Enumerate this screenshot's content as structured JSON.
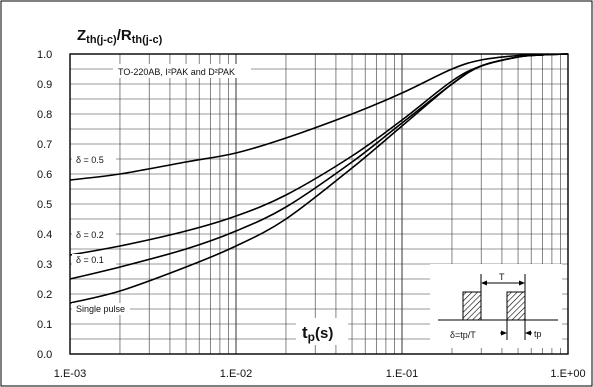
{
  "chart_data": {
    "type": "line",
    "ylabel": "Zth(j-c)/Rth(j-c)",
    "ylabel_parts": {
      "main": "Z",
      "sub": "th(j-c)",
      "slash": "/R",
      "sub2": "th(j-c)"
    },
    "xlabel": "tp(s)",
    "xlabel_parts": {
      "main": "t",
      "sub": "p",
      "rest": "(s)"
    },
    "xscale": "log",
    "xlim": [
      0.001,
      1
    ],
    "ylim": [
      0,
      1
    ],
    "grid": true,
    "xtick_labels": [
      "1.E-03",
      "1.E-02",
      "1.E-01",
      "1.E+00"
    ],
    "ytick_labels": [
      "0.0",
      "0.1",
      "0.2",
      "0.3",
      "0.4",
      "0.5",
      "0.6",
      "0.7",
      "0.8",
      "0.9",
      "1.0"
    ],
    "annotation_package": "TO-220AB, I²PAK and D²PAK",
    "inset": {
      "period_label": "T",
      "duty_label": "δ=tp/T",
      "pulse_label": "tp"
    },
    "series": [
      {
        "name": "δ = 0.5",
        "x": [
          0.001,
          0.002,
          0.005,
          0.01,
          0.02,
          0.05,
          0.1,
          0.2,
          0.3,
          0.5,
          0.7,
          1
        ],
        "y": [
          0.58,
          0.6,
          0.64,
          0.67,
          0.72,
          0.8,
          0.87,
          0.95,
          0.98,
          0.995,
          0.998,
          1.0
        ]
      },
      {
        "name": "δ = 0.2",
        "x": [
          0.001,
          0.002,
          0.005,
          0.01,
          0.02,
          0.05,
          0.1,
          0.2,
          0.3,
          0.5,
          0.7,
          1
        ],
        "y": [
          0.33,
          0.36,
          0.41,
          0.46,
          0.53,
          0.66,
          0.78,
          0.91,
          0.96,
          0.99,
          0.997,
          1.0
        ]
      },
      {
        "name": "δ = 0.1",
        "x": [
          0.001,
          0.002,
          0.005,
          0.01,
          0.02,
          0.05,
          0.1,
          0.2,
          0.3,
          0.5,
          0.7,
          1
        ],
        "y": [
          0.25,
          0.29,
          0.35,
          0.41,
          0.49,
          0.64,
          0.77,
          0.9,
          0.96,
          0.99,
          0.997,
          1.0
        ]
      },
      {
        "name": "Single pulse",
        "x": [
          0.001,
          0.002,
          0.005,
          0.01,
          0.02,
          0.05,
          0.1,
          0.2,
          0.3,
          0.5,
          0.7,
          1
        ],
        "y": [
          0.17,
          0.21,
          0.29,
          0.36,
          0.45,
          0.62,
          0.76,
          0.9,
          0.96,
          0.99,
          0.997,
          1.0
        ]
      }
    ],
    "colors": {
      "line": "#000000",
      "grid": "#333333",
      "frame": "#000000",
      "hatch": "#000000"
    }
  }
}
